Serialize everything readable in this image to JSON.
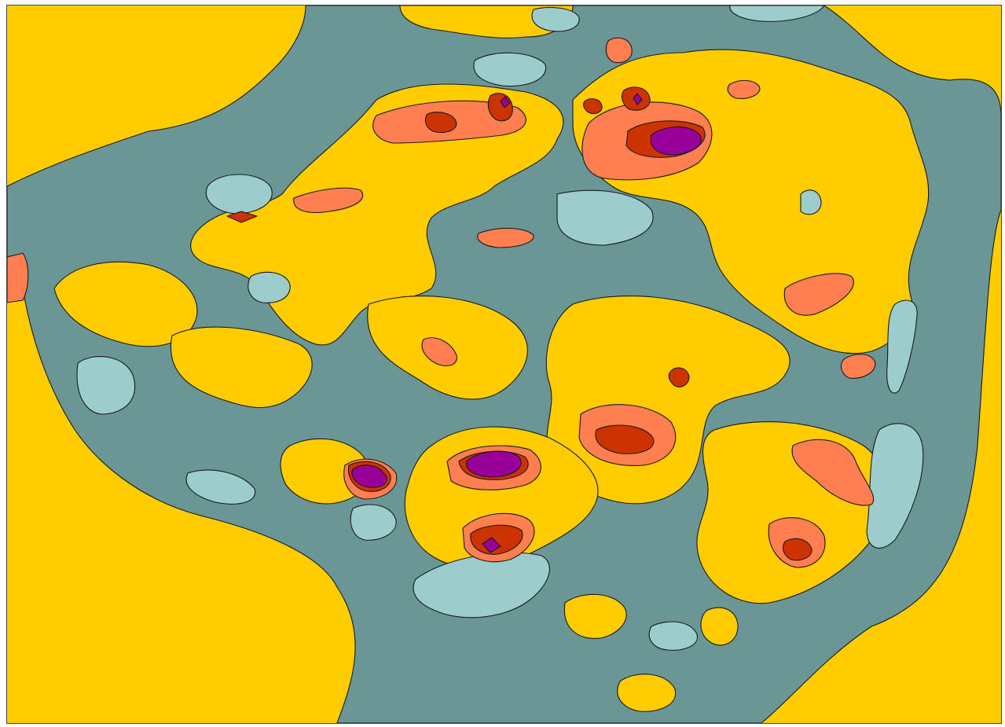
{
  "map": {
    "palette": {
      "background_level": "#ffcc00",
      "low_level": "#6a9696",
      "lowest_level": "#9ccccc",
      "high_level": "#ff7f50",
      "higher_level": "#cc3300",
      "highest_level": "#990099",
      "contour_line": "#1a1a1a"
    },
    "legend": null,
    "axes": null
  }
}
